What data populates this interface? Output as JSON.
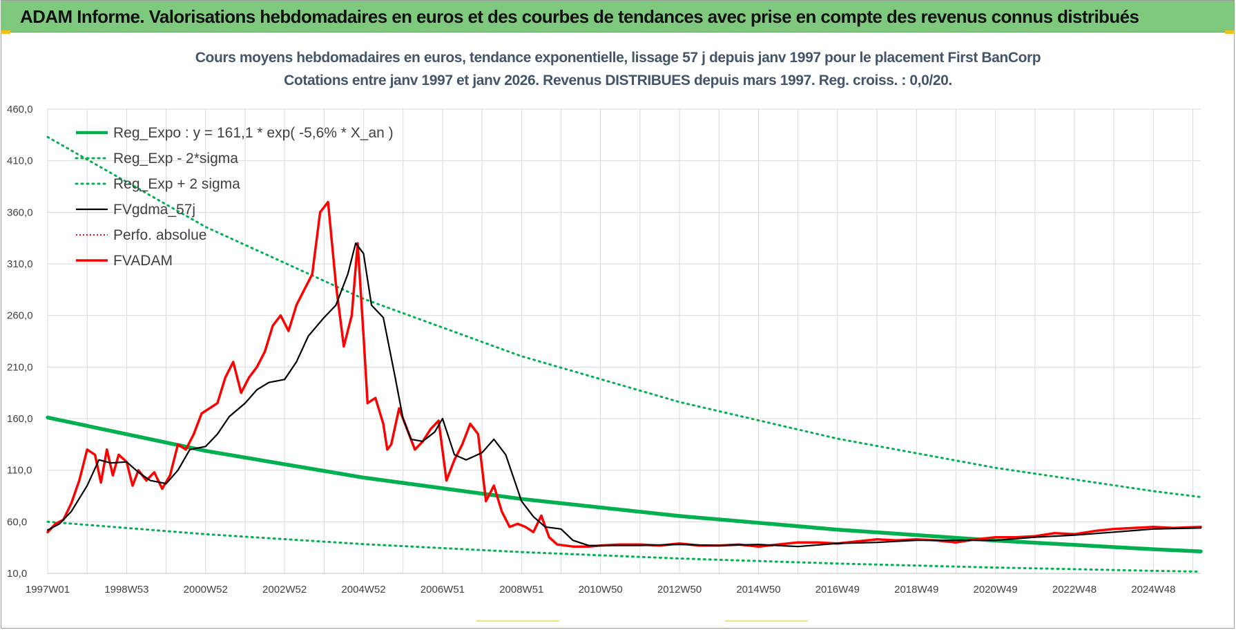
{
  "banner": {
    "title": "ADAM Informe. Valorisations hebdomadaires en euros et des courbes de tendances avec prise en compte des revenus connus distribués",
    "color": "#7fc97f"
  },
  "colors": {
    "reg_expo": "#00b050",
    "bands": "#00b050",
    "fvgdma": "#000000",
    "fvadam": "#ff0000",
    "grid": "#d9d9d9",
    "title": "#44546a"
  },
  "chart_data": {
    "type": "line",
    "title": "Cours moyens hebdomadaires en euros, tendance exponentielle, lissage 57 j depuis janv 1997  pour le placement First BanCorp",
    "subtitle": "Cotations entre janv 1997 et janv 2026. Revenus DISTRIBUES depuis mars 1997.  Reg. croiss. : 0,0/20.",
    "xlabel": "",
    "ylabel": "",
    "xlim": [
      1997.0,
      2026.2
    ],
    "ylim": [
      10,
      460
    ],
    "y_ticks": [
      "10,0",
      "60,0",
      "110,0",
      "160,0",
      "210,0",
      "260,0",
      "310,0",
      "360,0",
      "410,0",
      "460,0"
    ],
    "x_ticks": [
      {
        "label": "1997W01",
        "t": 1997.0
      },
      {
        "label": "1998W53",
        "t": 1999.0
      },
      {
        "label": "2000W52",
        "t": 2001.0
      },
      {
        "label": "2002W52",
        "t": 2003.0
      },
      {
        "label": "2004W52",
        "t": 2005.0
      },
      {
        "label": "2006W51",
        "t": 2007.0
      },
      {
        "label": "2008W51",
        "t": 2009.0
      },
      {
        "label": "2010W50",
        "t": 2011.0
      },
      {
        "label": "2012W50",
        "t": 2013.0
      },
      {
        "label": "2014W50",
        "t": 2015.0
      },
      {
        "label": "2016W49",
        "t": 2017.0
      },
      {
        "label": "2018W49",
        "t": 2019.0
      },
      {
        "label": "2020W49",
        "t": 2021.0
      },
      {
        "label": "2022W48",
        "t": 2023.0
      },
      {
        "label": "2024W48",
        "t": 2025.0
      }
    ],
    "legend_position": "top-left",
    "series": [
      {
        "name": "Reg_Expo : y = 161,1 * exp( -5,6% *  X_an )",
        "key": "reg_expo",
        "style": "solid-thick",
        "x": [
          1997.0,
          2001.0,
          2005.0,
          2009.0,
          2013.0,
          2017.0,
          2021.0,
          2025.0,
          2026.2
        ],
        "y": [
          161.1,
          128.7,
          102.8,
          82.1,
          65.6,
          52.4,
          41.8,
          33.4,
          31.3
        ]
      },
      {
        "name": "Reg_Exp - 2*sigma",
        "key": "lower_band",
        "style": "dotted",
        "x": [
          1997.0,
          2001.0,
          2005.0,
          2009.0,
          2013.0,
          2017.0,
          2021.0,
          2025.0,
          2026.2
        ],
        "y": [
          60.0,
          48.0,
          38.3,
          30.6,
          24.4,
          19.5,
          15.6,
          12.5,
          11.7
        ]
      },
      {
        "name": "Reg_Exp + 2 sigma",
        "key": "upper_band",
        "style": "dotted",
        "x": [
          1997.0,
          2001.0,
          2005.0,
          2009.0,
          2013.0,
          2017.0,
          2021.0,
          2025.0,
          2026.2
        ],
        "y": [
          433.0,
          345.8,
          276.1,
          220.5,
          176.1,
          140.6,
          112.3,
          89.7,
          84.0
        ]
      },
      {
        "name": "FVgdma_57j",
        "key": "fvgdma",
        "style": "solid-thin",
        "x": [
          1997.0,
          1997.3,
          1997.6,
          1998.0,
          1998.3,
          1998.6,
          1999.0,
          1999.3,
          1999.6,
          2000.0,
          2000.3,
          2000.6,
          2001.0,
          2001.3,
          2001.6,
          2002.0,
          2002.3,
          2002.6,
          2003.0,
          2003.3,
          2003.6,
          2004.0,
          2004.3,
          2004.6,
          2004.8,
          2005.0,
          2005.2,
          2005.5,
          2005.8,
          2006.0,
          2006.2,
          2006.5,
          2006.8,
          2007.0,
          2007.3,
          2007.6,
          2008.0,
          2008.3,
          2008.6,
          2009.0,
          2009.3,
          2009.6,
          2010.0,
          2010.3,
          2010.7,
          2011.0,
          2012.0,
          2013.0,
          2014.0,
          2015.0,
          2016.0,
          2017.0,
          2018.0,
          2019.0,
          2020.0,
          2021.0,
          2022.0,
          2023.0,
          2024.0,
          2025.0,
          2026.2
        ],
        "y": [
          52,
          58,
          70,
          95,
          120,
          117,
          118,
          108,
          100,
          97,
          110,
          130,
          133,
          145,
          162,
          175,
          188,
          195,
          198,
          215,
          240,
          258,
          270,
          300,
          330,
          320,
          270,
          258,
          200,
          160,
          140,
          138,
          147,
          160,
          125,
          120,
          127,
          140,
          125,
          80,
          65,
          55,
          53,
          42,
          37,
          37,
          37,
          38,
          37,
          38,
          36,
          39,
          40,
          42,
          42,
          42,
          45,
          47,
          50,
          53,
          54
        ]
      },
      {
        "name": "Perfo. absolue",
        "key": "perfo",
        "style": "dotted-red",
        "x": [],
        "y": []
      },
      {
        "name": "FVADAM",
        "key": "fvadam",
        "style": "solid-thick-red",
        "x": [
          1997.0,
          1997.2,
          1997.4,
          1997.6,
          1997.8,
          1998.0,
          1998.2,
          1998.35,
          1998.5,
          1998.65,
          1998.8,
          1999.0,
          1999.15,
          1999.3,
          1999.5,
          1999.7,
          1999.9,
          2000.1,
          2000.3,
          2000.5,
          2000.7,
          2000.9,
          2001.1,
          2001.3,
          2001.5,
          2001.7,
          2001.9,
          2002.1,
          2002.3,
          2002.5,
          2002.7,
          2002.9,
          2003.1,
          2003.3,
          2003.5,
          2003.7,
          2003.9,
          2004.1,
          2004.3,
          2004.5,
          2004.7,
          2004.85,
          2005.0,
          2005.1,
          2005.3,
          2005.5,
          2005.6,
          2005.7,
          2005.9,
          2006.1,
          2006.3,
          2006.5,
          2006.7,
          2006.9,
          2007.1,
          2007.3,
          2007.5,
          2007.7,
          2007.9,
          2008.1,
          2008.3,
          2008.5,
          2008.7,
          2008.9,
          2009.1,
          2009.3,
          2009.5,
          2009.7,
          2009.9,
          2010.1,
          2010.3,
          2010.5,
          2010.7,
          2011.0,
          2011.5,
          2012.0,
          2012.5,
          2013.0,
          2013.5,
          2014.0,
          2014.5,
          2015.0,
          2015.5,
          2016.0,
          2016.5,
          2017.0,
          2017.5,
          2018.0,
          2018.5,
          2019.0,
          2019.5,
          2020.0,
          2020.5,
          2021.0,
          2021.5,
          2022.0,
          2022.5,
          2023.0,
          2023.5,
          2024.0,
          2024.5,
          2025.0,
          2025.5,
          2026.2
        ],
        "y": [
          50,
          58,
          62,
          78,
          100,
          130,
          125,
          98,
          130,
          105,
          125,
          118,
          95,
          110,
          100,
          108,
          92,
          105,
          135,
          130,
          145,
          165,
          170,
          175,
          200,
          215,
          185,
          200,
          210,
          225,
          250,
          260,
          245,
          270,
          285,
          300,
          360,
          370,
          290,
          230,
          260,
          330,
          240,
          175,
          180,
          155,
          130,
          135,
          170,
          150,
          130,
          138,
          150,
          158,
          100,
          120,
          135,
          155,
          145,
          80,
          95,
          70,
          55,
          58,
          55,
          50,
          66,
          45,
          38,
          37,
          36,
          36,
          36,
          37,
          38,
          38,
          37,
          39,
          37,
          37,
          38,
          36,
          38,
          40,
          40,
          39,
          41,
          43,
          42,
          43,
          42,
          40,
          43,
          45,
          45,
          46,
          49,
          48,
          51,
          53,
          54,
          55,
          54,
          55
        ]
      }
    ]
  }
}
